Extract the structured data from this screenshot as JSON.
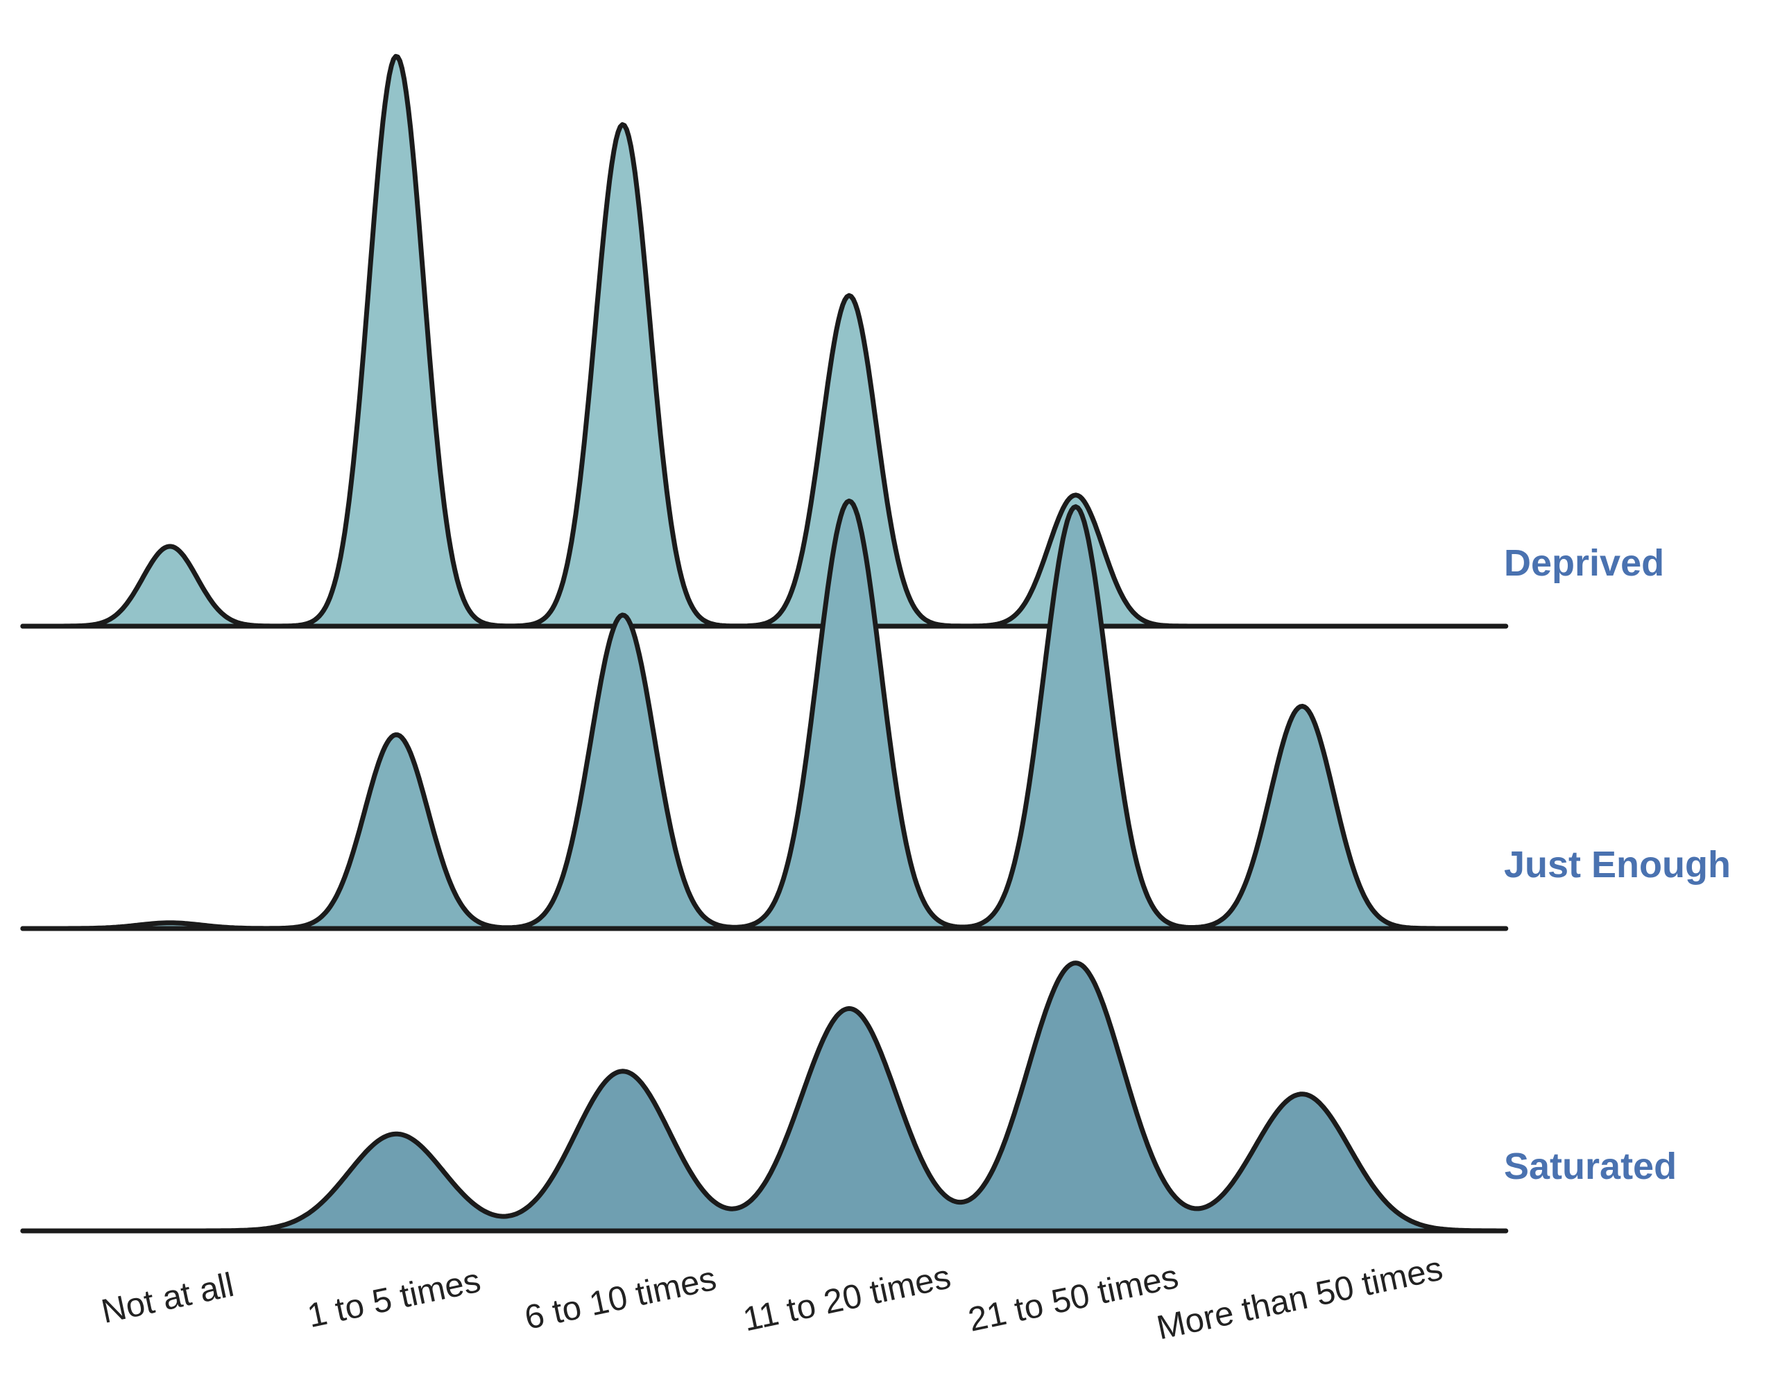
{
  "chart_data": {
    "type": "ridgeline",
    "categories": [
      "Not at all",
      "1 to 5 times",
      "6 to 10 times",
      "11 to 20 times",
      "21 to 50 times",
      "More than 50 times"
    ],
    "x": [
      1,
      2,
      3,
      4,
      5,
      6
    ],
    "xlim": [
      0.35,
      6.9
    ],
    "title": "",
    "xlabel": "",
    "ylabel": "",
    "grid": false,
    "legend": "labels at right end of each ridge",
    "label_color": "#4a72b0",
    "series": [
      {
        "name": "Deprived",
        "fill": "#94c3c9",
        "sd": 0.12,
        "peaks": [
          0.14,
          1.0,
          0.88,
          0.58,
          0.23,
          0.0
        ]
      },
      {
        "name": "Just Enough",
        "fill": "#80b1bd",
        "sd": 0.14,
        "peaks": [
          0.01,
          0.34,
          0.55,
          0.75,
          0.74,
          0.39
        ]
      },
      {
        "name": "Saturated",
        "fill": "#6f9fb1",
        "sd": 0.21,
        "peaks": [
          0.0,
          0.17,
          0.28,
          0.39,
          0.47,
          0.24
        ]
      }
    ]
  }
}
